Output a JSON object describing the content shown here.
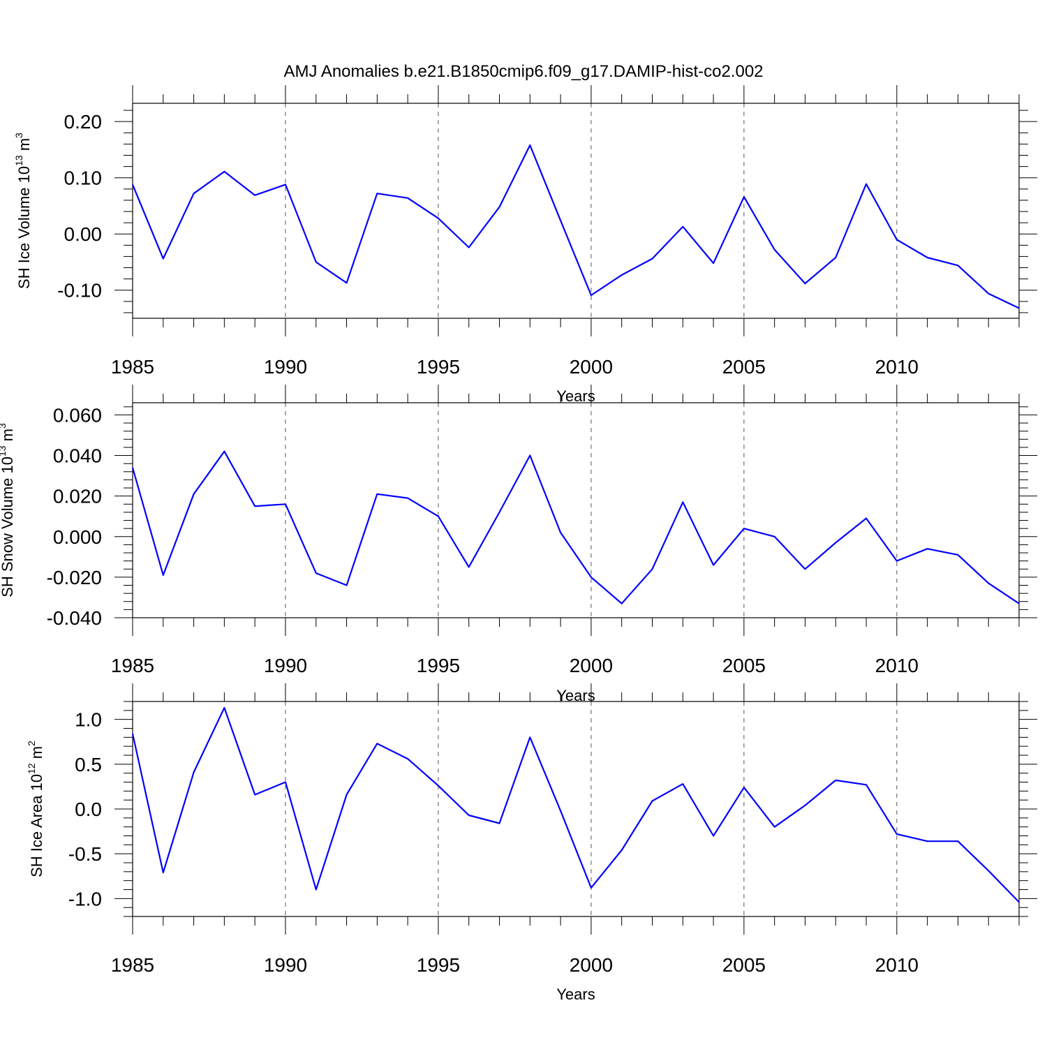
{
  "title": "AMJ Anomalies b.e21.B1850cmip6.f09_g17.DAMIP-hist-co2.002",
  "colors": {
    "line": "#0000ff",
    "axis": "#000000",
    "grid": "#555555"
  },
  "chart_data": [
    {
      "type": "line",
      "xlabel": "Years",
      "ylabel": "SH Ice Volume 10",
      "ylabel_sup": "13",
      "ylabel_unit": "m",
      "ylabel_unit_sup": "3",
      "xlim": [
        1985,
        2014
      ],
      "ylim": [
        -0.15,
        0.2325
      ],
      "xticks": [
        "1985",
        "1990",
        "1995",
        "2000",
        "2005",
        "2010"
      ],
      "yticks": [
        "0.20",
        "0.10",
        "0.00",
        "-0.10"
      ],
      "ytick_values": [
        0.2,
        0.1,
        0.0,
        -0.1
      ],
      "x": [
        1985,
        1986,
        1987,
        1988,
        1989,
        1990,
        1991,
        1992,
        1993,
        1994,
        1995,
        1996,
        1997,
        1998,
        1999,
        2000,
        2001,
        2002,
        2003,
        2004,
        2005,
        2006,
        2007,
        2008,
        2009,
        2010,
        2011,
        2012,
        2013,
        2014
      ],
      "series": [
        {
          "values": [
            0.088,
            -0.044,
            0.072,
            0.111,
            0.069,
            0.088,
            -0.05,
            -0.087,
            0.072,
            0.064,
            0.028,
            -0.024,
            0.048,
            0.158,
            0.024,
            -0.109,
            -0.073,
            -0.044,
            0.013,
            -0.052,
            0.066,
            -0.028,
            -0.088,
            -0.042,
            0.089,
            -0.01,
            -0.042,
            -0.056,
            -0.106,
            -0.132
          ]
        }
      ]
    },
    {
      "type": "line",
      "xlabel": "Years",
      "ylabel": "SH Snow Volume 10",
      "ylabel_sup": "13",
      "ylabel_unit": "m",
      "ylabel_unit_sup": "3",
      "xlim": [
        1985,
        2014
      ],
      "ylim": [
        -0.04,
        0.066
      ],
      "xticks": [
        "1985",
        "1990",
        "1995",
        "2000",
        "2005",
        "2010"
      ],
      "yticks": [
        "0.060",
        "0.040",
        "0.020",
        "0.000",
        "-0.020",
        "-0.040"
      ],
      "ytick_values": [
        0.06,
        0.04,
        0.02,
        0.0,
        -0.02,
        -0.04
      ],
      "x": [
        1985,
        1986,
        1987,
        1988,
        1989,
        1990,
        1991,
        1992,
        1993,
        1994,
        1995,
        1996,
        1997,
        1998,
        1999,
        2000,
        2001,
        2002,
        2003,
        2004,
        2005,
        2006,
        2007,
        2008,
        2009,
        2010,
        2011,
        2012,
        2013,
        2014
      ],
      "series": [
        {
          "values": [
            0.034,
            -0.019,
            0.021,
            0.042,
            0.015,
            0.016,
            -0.018,
            -0.024,
            0.021,
            0.019,
            0.01,
            -0.015,
            0.012,
            0.04,
            0.002,
            -0.02,
            -0.033,
            -0.016,
            0.017,
            -0.014,
            0.004,
            0.0,
            -0.016,
            -0.003,
            0.009,
            -0.012,
            -0.006,
            -0.009,
            -0.023,
            -0.033
          ]
        }
      ]
    },
    {
      "type": "line",
      "xlabel": "Years",
      "ylabel": "SH Ice Area 10",
      "ylabel_sup": "12",
      "ylabel_unit": "m",
      "ylabel_unit_sup": "2",
      "xlim": [
        1985,
        2014
      ],
      "ylim": [
        -1.2,
        1.2
      ],
      "xticks": [
        "1985",
        "1990",
        "1995",
        "2000",
        "2005",
        "2010"
      ],
      "yticks": [
        "1.0",
        "0.5",
        "0.0",
        "-0.5",
        "-1.0"
      ],
      "ytick_values": [
        1.0,
        0.5,
        0.0,
        -0.5,
        -1.0
      ],
      "x": [
        1985,
        1986,
        1987,
        1988,
        1989,
        1990,
        1991,
        1992,
        1993,
        1994,
        1995,
        1996,
        1997,
        1998,
        1999,
        2000,
        2001,
        2002,
        2003,
        2004,
        2005,
        2006,
        2007,
        2008,
        2009,
        2010,
        2011,
        2012,
        2013,
        2014
      ],
      "series": [
        {
          "values": [
            0.84,
            -0.71,
            0.41,
            1.13,
            0.16,
            0.3,
            -0.9,
            0.16,
            0.73,
            0.56,
            0.26,
            -0.07,
            -0.16,
            0.8,
            -0.02,
            -0.88,
            -0.46,
            0.09,
            0.28,
            -0.3,
            0.24,
            -0.2,
            0.04,
            0.32,
            0.27,
            -0.28,
            -0.36,
            -0.36,
            -0.69,
            -1.04
          ]
        }
      ]
    }
  ]
}
